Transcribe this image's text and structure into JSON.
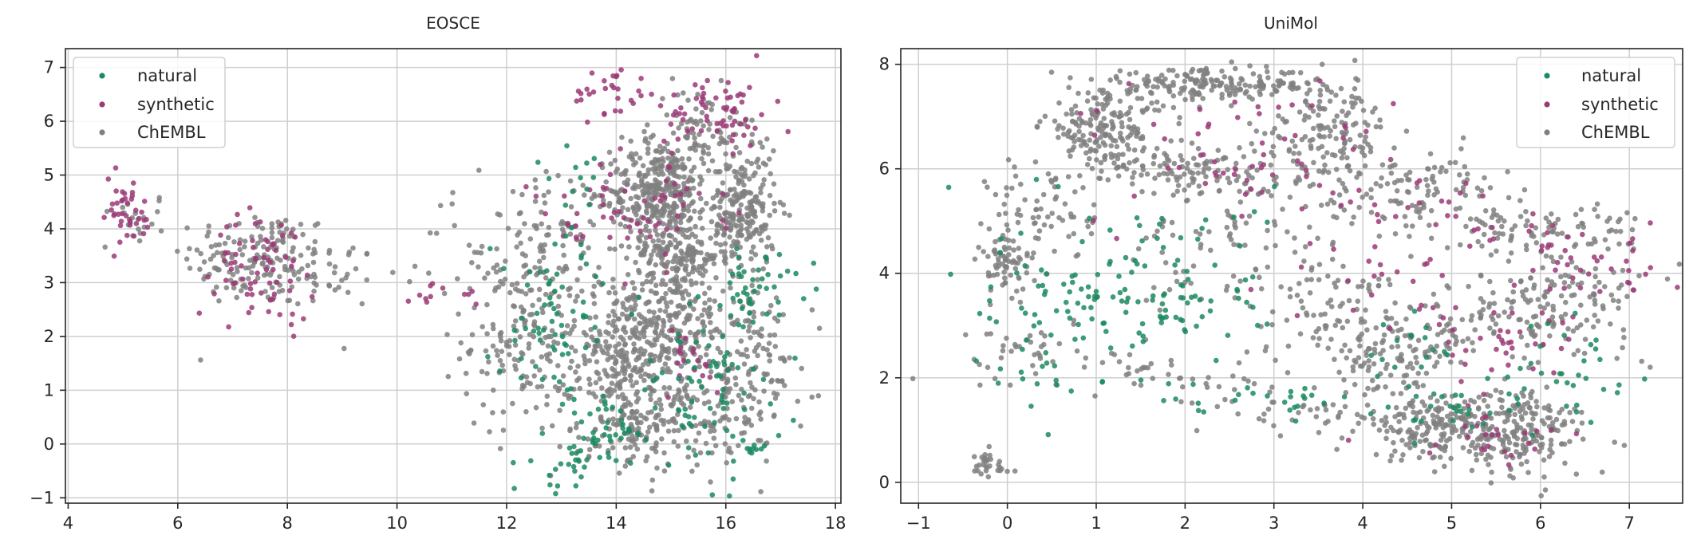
{
  "colors": {
    "natural": "#1b8a5f",
    "synthetic": "#9b3a78",
    "ChEMBL": "#808080"
  },
  "chart_data": [
    {
      "type": "scatter",
      "title": "EOSCE",
      "xlabel": "",
      "ylabel": "",
      "xlim": [
        3.95,
        18.1
      ],
      "ylim": [
        -1.1,
        7.35
      ],
      "xticks": [
        4,
        6,
        8,
        10,
        12,
        14,
        16,
        18
      ],
      "yticks": [
        -1,
        0,
        1,
        2,
        3,
        4,
        5,
        6,
        7
      ],
      "grid": true,
      "legend_position": "upper-left",
      "legend": [
        "natural",
        "synthetic",
        "ChEMBL"
      ],
      "series": [
        {
          "name": "ChEMBL",
          "clusters": [
            {
              "cx": 5.2,
              "cy": 4.2,
              "sx": 0.35,
              "sy": 0.25,
              "n": 20
            },
            {
              "cx": 7.5,
              "cy": 3.45,
              "sx": 0.7,
              "sy": 0.45,
              "n": 160
            },
            {
              "cx": 8.8,
              "cy": 3.1,
              "sx": 0.4,
              "sy": 0.35,
              "n": 25
            },
            {
              "cx": 10.6,
              "cy": 3.4,
              "sx": 1.0,
              "sy": 0.7,
              "n": 25
            },
            {
              "cx": 12.3,
              "cy": 2.0,
              "sx": 0.55,
              "sy": 0.9,
              "n": 180
            },
            {
              "cx": 13.0,
              "cy": 3.8,
              "sx": 0.7,
              "sy": 0.6,
              "n": 90
            },
            {
              "cx": 14.2,
              "cy": 1.6,
              "sx": 0.5,
              "sy": 0.7,
              "n": 280
            },
            {
              "cx": 15.1,
              "cy": 2.3,
              "sx": 0.6,
              "sy": 0.5,
              "n": 180
            },
            {
              "cx": 14.8,
              "cy": 4.7,
              "sx": 0.45,
              "sy": 0.45,
              "n": 330
            },
            {
              "cx": 15.1,
              "cy": 3.5,
              "sx": 0.45,
              "sy": 0.3,
              "n": 170
            },
            {
              "cx": 16.3,
              "cy": 4.3,
              "sx": 0.3,
              "sy": 0.55,
              "n": 220
            },
            {
              "cx": 15.6,
              "cy": 5.8,
              "sx": 0.5,
              "sy": 0.4,
              "n": 90
            },
            {
              "cx": 15.6,
              "cy": 0.7,
              "sx": 0.8,
              "sy": 0.6,
              "n": 160
            },
            {
              "cx": 14.6,
              "cy": 0.2,
              "sx": 0.7,
              "sy": 0.3,
              "n": 90
            },
            {
              "cx": 16.6,
              "cy": 1.8,
              "sx": 0.4,
              "sy": 0.6,
              "n": 70
            }
          ]
        },
        {
          "name": "synthetic",
          "clusters": [
            {
              "cx": 5.0,
              "cy": 4.3,
              "sx": 0.3,
              "sy": 0.35,
              "n": 40
            },
            {
              "cx": 7.6,
              "cy": 3.3,
              "sx": 0.45,
              "sy": 0.5,
              "n": 70
            },
            {
              "cx": 10.6,
              "cy": 2.85,
              "sx": 0.35,
              "sy": 0.2,
              "n": 8
            },
            {
              "cx": 11.3,
              "cy": 2.8,
              "sx": 0.15,
              "sy": 0.1,
              "n": 4
            },
            {
              "cx": 13.9,
              "cy": 6.5,
              "sx": 0.35,
              "sy": 0.25,
              "n": 30
            },
            {
              "cx": 15.9,
              "cy": 6.2,
              "sx": 0.5,
              "sy": 0.35,
              "n": 60
            },
            {
              "cx": 14.6,
              "cy": 4.5,
              "sx": 0.7,
              "sy": 0.6,
              "n": 50
            },
            {
              "cx": 13.3,
              "cy": 4.0,
              "sx": 0.5,
              "sy": 0.4,
              "n": 15
            },
            {
              "cx": 15.3,
              "cy": 1.6,
              "sx": 0.5,
              "sy": 0.4,
              "n": 20
            }
          ]
        },
        {
          "name": "natural",
          "clusters": [
            {
              "cx": 13.0,
              "cy": 2.2,
              "sx": 0.6,
              "sy": 0.9,
              "n": 70
            },
            {
              "cx": 13.2,
              "cy": -0.4,
              "sx": 0.35,
              "sy": 0.25,
              "n": 30
            },
            {
              "cx": 13.6,
              "cy": 0.3,
              "sx": 0.3,
              "sy": 0.3,
              "n": 20
            },
            {
              "cx": 15.7,
              "cy": 1.0,
              "sx": 0.7,
              "sy": 0.8,
              "n": 80
            },
            {
              "cx": 16.6,
              "cy": 3.0,
              "sx": 0.5,
              "sy": 0.3,
              "n": 40
            },
            {
              "cx": 13.4,
              "cy": 5.0,
              "sx": 0.3,
              "sy": 0.3,
              "n": 12
            },
            {
              "cx": 16.5,
              "cy": -0.1,
              "sx": 0.2,
              "sy": 0.15,
              "n": 8
            },
            {
              "cx": 14.2,
              "cy": 0.2,
              "sx": 0.3,
              "sy": 0.1,
              "n": 10
            }
          ]
        }
      ]
    },
    {
      "type": "scatter",
      "title": "UniMol",
      "xlabel": "",
      "ylabel": "",
      "xlim": [
        -1.2,
        7.6
      ],
      "ylim": [
        -0.4,
        8.3
      ],
      "xticks": [
        -1,
        0,
        1,
        2,
        3,
        4,
        5,
        6,
        7
      ],
      "yticks": [
        0,
        2,
        4,
        6,
        8
      ],
      "grid": true,
      "legend_position": "upper-right",
      "legend": [
        "natural",
        "synthetic",
        "ChEMBL"
      ],
      "series": [
        {
          "name": "ChEMBL",
          "clusters": [
            {
              "cx": -0.25,
              "cy": 0.3,
              "sx": 0.15,
              "sy": 0.15,
              "n": 30
            },
            {
              "cx": 1.1,
              "cy": 6.8,
              "sx": 0.35,
              "sy": 0.35,
              "n": 180
            },
            {
              "cx": 2.3,
              "cy": 7.6,
              "sx": 0.6,
              "sy": 0.15,
              "n": 180
            },
            {
              "cx": 3.6,
              "cy": 6.8,
              "sx": 0.35,
              "sy": 0.5,
              "n": 140
            },
            {
              "cx": 4.6,
              "cy": 5.6,
              "sx": 0.45,
              "sy": 0.4,
              "n": 110
            },
            {
              "cx": 6.0,
              "cy": 4.8,
              "sx": 0.6,
              "sy": 0.3,
              "n": 90
            },
            {
              "cx": 2.0,
              "cy": 6.0,
              "sx": 0.7,
              "sy": 0.25,
              "n": 130
            },
            {
              "cx": 0.0,
              "cy": 4.2,
              "sx": 0.15,
              "sy": 0.3,
              "n": 70
            },
            {
              "cx": 0.4,
              "cy": 5.2,
              "sx": 0.3,
              "sy": 0.5,
              "n": 60
            },
            {
              "cx": 0.2,
              "cy": 2.5,
              "sx": 0.35,
              "sy": 0.35,
              "n": 40
            },
            {
              "cx": 4.9,
              "cy": 1.0,
              "sx": 0.45,
              "sy": 0.3,
              "n": 200
            },
            {
              "cx": 5.8,
              "cy": 0.6,
              "sx": 0.35,
              "sy": 0.3,
              "n": 80
            },
            {
              "cx": 5.8,
              "cy": 1.3,
              "sx": 0.35,
              "sy": 0.25,
              "n": 90
            },
            {
              "cx": 4.4,
              "cy": 2.3,
              "sx": 0.35,
              "sy": 0.45,
              "n": 100
            },
            {
              "cx": 5.6,
              "cy": 3.2,
              "sx": 0.7,
              "sy": 0.4,
              "n": 130
            },
            {
              "cx": 6.5,
              "cy": 3.8,
              "sx": 0.4,
              "sy": 0.5,
              "n": 60
            },
            {
              "cx": 3.8,
              "cy": 3.2,
              "sx": 0.4,
              "sy": 0.5,
              "n": 60
            },
            {
              "cx": 2.8,
              "cy": 4.5,
              "sx": 0.8,
              "sy": 0.7,
              "n": 120
            },
            {
              "cx": 2.3,
              "cy": 1.8,
              "sx": 0.4,
              "sy": 0.3,
              "n": 30
            },
            {
              "cx": 1.3,
              "cy": 2.2,
              "sx": 0.3,
              "sy": 0.3,
              "n": 20
            },
            {
              "cx": 3.5,
              "cy": 1.3,
              "sx": 0.4,
              "sy": 0.2,
              "n": 25
            }
          ]
        },
        {
          "name": "synthetic",
          "clusters": [
            {
              "cx": 2.8,
              "cy": 6.3,
              "sx": 0.9,
              "sy": 0.7,
              "n": 60
            },
            {
              "cx": 6.7,
              "cy": 4.0,
              "sx": 0.4,
              "sy": 0.35,
              "n": 30
            },
            {
              "cx": 5.4,
              "cy": 2.8,
              "sx": 0.4,
              "sy": 0.4,
              "n": 35
            },
            {
              "cx": 5.4,
              "cy": 0.8,
              "sx": 0.5,
              "sy": 0.3,
              "n": 25
            },
            {
              "cx": 4.2,
              "cy": 3.8,
              "sx": 0.5,
              "sy": 0.5,
              "n": 25
            },
            {
              "cx": 6.2,
              "cy": 4.7,
              "sx": 0.5,
              "sy": 0.2,
              "n": 15
            },
            {
              "cx": 4.8,
              "cy": 5.2,
              "sx": 0.6,
              "sy": 0.5,
              "n": 20
            }
          ]
        },
        {
          "name": "natural",
          "clusters": [
            {
              "cx": 1.6,
              "cy": 3.7,
              "sx": 0.7,
              "sy": 0.9,
              "n": 130
            },
            {
              "cx": 0.3,
              "cy": 2.8,
              "sx": 0.3,
              "sy": 0.8,
              "n": 30
            },
            {
              "cx": 2.9,
              "cy": 1.5,
              "sx": 0.6,
              "sy": 0.25,
              "n": 25
            },
            {
              "cx": 6.4,
              "cy": 2.1,
              "sx": 0.35,
              "sy": 0.5,
              "n": 30
            },
            {
              "cx": 5.0,
              "cy": 1.5,
              "sx": 0.5,
              "sy": 0.4,
              "n": 30
            },
            {
              "cx": 4.6,
              "cy": 2.6,
              "sx": 0.3,
              "sy": 0.3,
              "n": 15
            }
          ]
        }
      ]
    }
  ]
}
